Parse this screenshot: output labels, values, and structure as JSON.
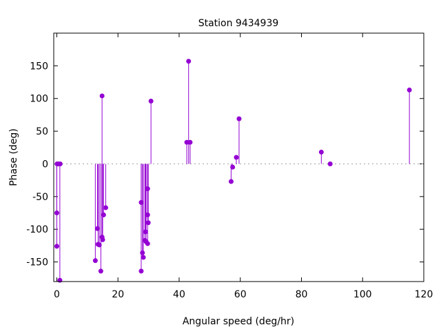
{
  "chart_data": {
    "type": "scatter",
    "style": "impulses-with-points",
    "title": "Station 9434939",
    "xlabel": "Angular speed (deg/hr)",
    "ylabel": "Phase (deg)",
    "xlim": [
      -1,
      120
    ],
    "ylim": [
      -180,
      200
    ],
    "xticks": [
      0,
      20,
      40,
      60,
      80,
      100,
      120
    ],
    "yticks": [
      -150,
      -100,
      -50,
      0,
      50,
      100,
      150
    ],
    "grid": false,
    "zero_line": true,
    "color": "#9400d3",
    "points": [
      [
        0.0,
        -75
      ],
      [
        0.0,
        -126
      ],
      [
        0.1,
        0
      ],
      [
        0.5,
        0
      ],
      [
        1.0,
        -178
      ],
      [
        1.1,
        0
      ],
      [
        12.6,
        -148
      ],
      [
        13.3,
        -99
      ],
      [
        13.5,
        -123
      ],
      [
        13.9,
        -124
      ],
      [
        14.4,
        -164
      ],
      [
        14.8,
        104
      ],
      [
        14.8,
        -112
      ],
      [
        15.0,
        -116
      ],
      [
        15.3,
        -78
      ],
      [
        16.0,
        -67
      ],
      [
        27.6,
        -164
      ],
      [
        27.6,
        -59
      ],
      [
        28.0,
        -136
      ],
      [
        28.3,
        -143
      ],
      [
        28.8,
        -117
      ],
      [
        29.0,
        -104
      ],
      [
        29.2,
        -119
      ],
      [
        29.7,
        -122
      ],
      [
        29.7,
        -38
      ],
      [
        29.7,
        -78
      ],
      [
        29.9,
        -90
      ],
      [
        30.8,
        96
      ],
      [
        42.5,
        33
      ],
      [
        43.1,
        157
      ],
      [
        43.6,
        33
      ],
      [
        57.0,
        -27
      ],
      [
        57.5,
        -5
      ],
      [
        58.7,
        10
      ],
      [
        59.6,
        69
      ],
      [
        86.5,
        18
      ],
      [
        89.4,
        0
      ],
      [
        115.3,
        113
      ]
    ]
  }
}
